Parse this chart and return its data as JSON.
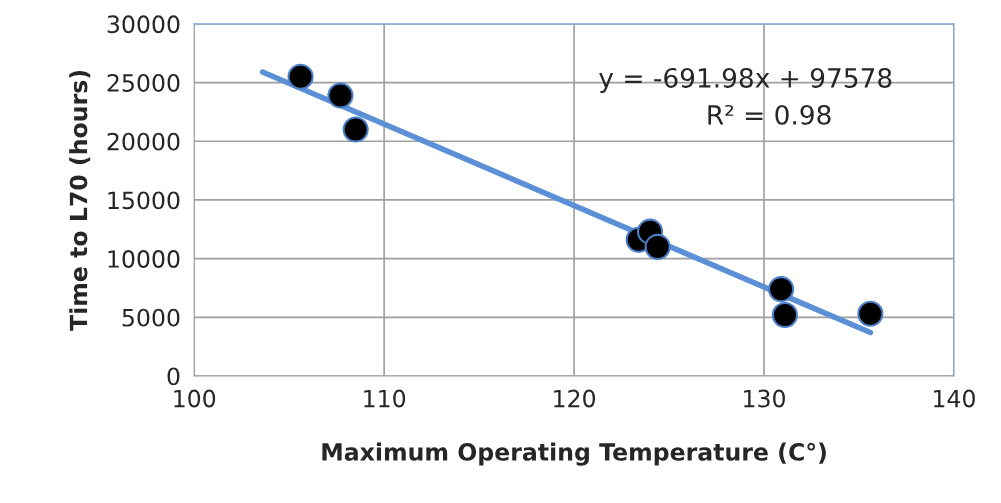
{
  "chart_data": {
    "type": "scatter",
    "xlabel": "Maximum Operating Temperature (C°)",
    "ylabel": "Time to L70 (hours)",
    "series": [
      {
        "marker": "circle",
        "color": "#000000",
        "x": [
          105.6,
          107.7,
          108.5,
          123.4,
          124.0,
          124.4,
          130.9,
          131.1,
          135.6
        ],
        "values": [
          25500,
          23900,
          21000,
          11600,
          12300,
          11000,
          7400,
          5200,
          5300
        ]
      },
      {
        "type": "line",
        "color": "#5b8fd6",
        "x": [
          103.6,
          135.6
        ],
        "values": [
          25900,
          3700
        ]
      }
    ],
    "xlim": [
      100,
      140
    ],
    "xticks": [
      100,
      110,
      120,
      130,
      140
    ],
    "ylim": [
      0,
      30000
    ],
    "yticks": [
      0,
      5000,
      10000,
      15000,
      20000,
      25000,
      30000
    ],
    "grid": true,
    "annotations": [
      "y = -691.98x + 97578",
      "R² = 0.98"
    ]
  }
}
